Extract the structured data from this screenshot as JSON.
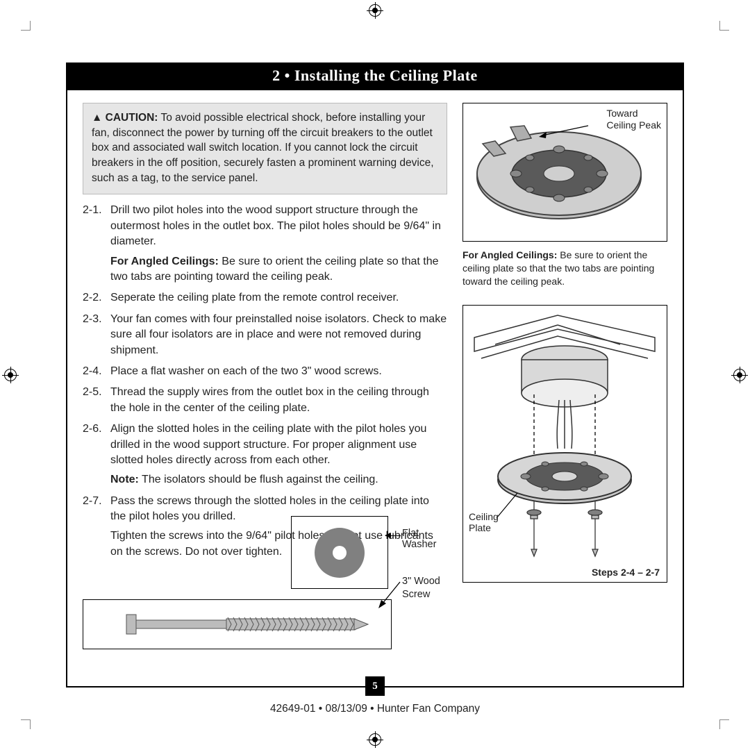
{
  "title": "2 • Installing the Ceiling Plate",
  "caution": {
    "icon": "▲",
    "label": "CAUTION:",
    "text": "To avoid possible electrical shock, before installing your fan, disconnect the power by turning off the circuit breakers to the outlet box and associated wall switch location. If you cannot lock the circuit breakers in the off position, securely fasten a prominent warning device, such as a tag, to the service panel."
  },
  "steps": [
    {
      "num": "2-1.",
      "body": "Drill two pilot holes into the wood support structure through the outermost holes in the outlet box. The pilot holes should be 9/64\" in diameter.",
      "sub_bold": "For Angled Ceilings:",
      "sub": " Be sure to orient the ceiling plate so that the two tabs are pointing toward the ceiling peak."
    },
    {
      "num": "2-2.",
      "body": "Seperate the ceiling plate from the remote control receiver."
    },
    {
      "num": "2-3.",
      "body": "Your fan comes with four preinstalled noise isolators. Check to make sure all four isolators are in place and were not removed during shipment."
    },
    {
      "num": "2-4.",
      "body": "Place a flat washer on each of the two 3\" wood screws."
    },
    {
      "num": "2-5.",
      "body": "Thread the supply wires from the outlet box in the ceiling through the hole in the center of the ceiling plate."
    },
    {
      "num": "2-6.",
      "body": "Align the slotted holes in the ceiling plate with the pilot holes you drilled in the wood support structure. For proper alignment use slotted holes directly across from each other.",
      "sub_bold": "Note:",
      "sub": " The isolators should be flush against the ceiling."
    },
    {
      "num": "2-7.",
      "body": "Pass the screws through the slotted holes in the ceiling plate into the pilot holes you drilled.",
      "sub2": "Tighten the screws into the 9/64\" pilot holes; do not use lubricants on the screws. Do not over tighten."
    }
  ],
  "fig1": {
    "label_tr": "Toward\nCeiling Peak",
    "caption_bold": "For Angled Ceilings:",
    "caption": " Be sure to orient the ceiling plate so that the two tabs are pointing toward the ceiling peak."
  },
  "fig2": {
    "label_plate": "Ceiling\nPlate",
    "label_steps": "Steps 2-4 – 2-7"
  },
  "washer_label": "Flat Washer",
  "screw_label": "3\" Wood\nScrew",
  "page_number": "5",
  "footer": "42649-01  •  08/13/09  •  Hunter Fan Company",
  "colors": {
    "plate_fill": "#b2b2b2",
    "plate_dark": "#5a5a5a",
    "screw_fill": "#bcbcbc"
  }
}
